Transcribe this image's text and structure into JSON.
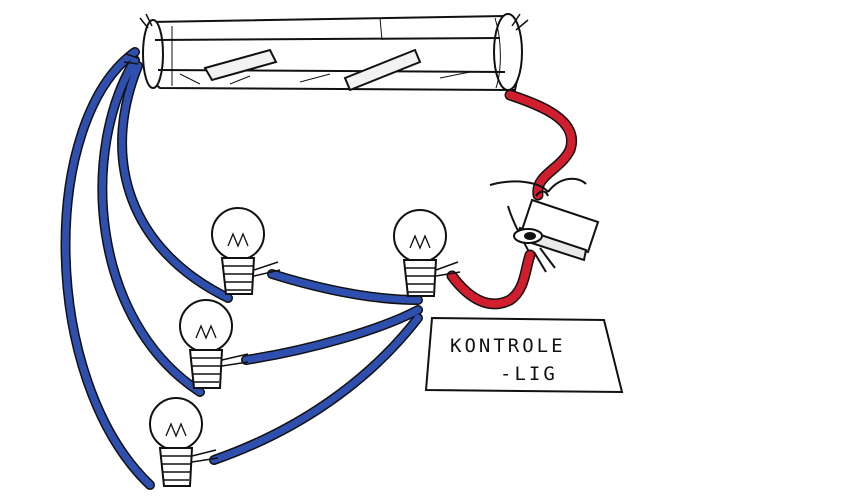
{
  "label": {
    "line1": "KONTROLE",
    "line2": "-LIG"
  },
  "colors": {
    "wire_blue": "#2f4fae",
    "wire_red": "#d01e2e",
    "ink": "#111111",
    "paper": "#ffffff"
  },
  "components": {
    "battery": "battery-pack-icon",
    "switch": "toggle-switch-icon",
    "bulbs": [
      "bulb-icon",
      "bulb-icon",
      "bulb-icon",
      "bulb-icon"
    ]
  }
}
